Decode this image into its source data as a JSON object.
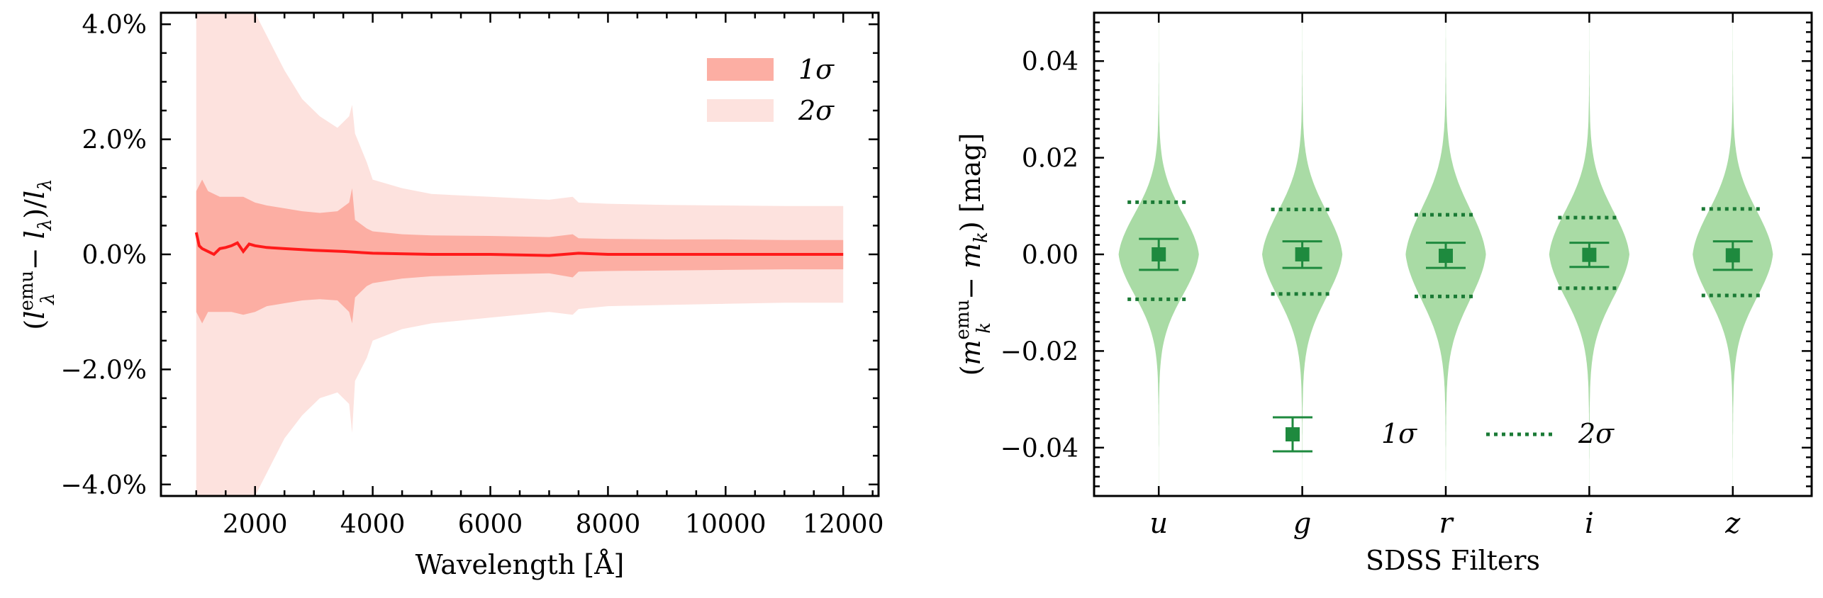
{
  "chart_data": [
    {
      "type": "area",
      "xlabel": "Wavelength [Å]",
      "ylabel": "(l_λ^emu − l_λ)/l_λ",
      "ylabel_parts": {
        "open": "(",
        "l": "l",
        "sup": "emu",
        "sub": "λ",
        "mid": " − ",
        "l2": "l",
        "sub2": "λ",
        "close": ")/",
        "l3": "l",
        "sub3": "λ"
      },
      "xlim": [
        400,
        12600
      ],
      "ylim": [
        -4.2,
        4.2
      ],
      "xticks": [
        2000,
        4000,
        6000,
        8000,
        10000,
        12000
      ],
      "xtick_labels": [
        "2000",
        "4000",
        "6000",
        "8000",
        "10000",
        "12000"
      ],
      "yticks": [
        -4,
        -2,
        0,
        2,
        4
      ],
      "ytick_labels": [
        "−4.0%",
        "−2.0%",
        "0.0%",
        "2.0%",
        "4.0%"
      ],
      "legend": {
        "position": "upper right",
        "entries": [
          {
            "label": "1σ",
            "color": "#fcaea3"
          },
          {
            "label": "2σ",
            "color": "#fde2de"
          }
        ]
      },
      "colors": {
        "one_sigma": "#fcaea3",
        "two_sigma": "#fde2de",
        "median": "#ff1a1a"
      },
      "series": [
        {
          "name": "2σ",
          "x": [
            1000,
            1100,
            1200,
            1400,
            1600,
            1800,
            2000,
            2200,
            2500,
            2800,
            3100,
            3400,
            3600,
            3650,
            3700,
            3900,
            4000,
            4500,
            5000,
            6000,
            7000,
            7400,
            7500,
            8000,
            9000,
            10000,
            11000,
            12000
          ],
          "upper": [
            4.2,
            4.2,
            4.2,
            4.2,
            4.2,
            4.2,
            4.2,
            3.8,
            3.2,
            2.7,
            2.4,
            2.2,
            2.4,
            2.6,
            2.1,
            1.6,
            1.3,
            1.15,
            1.05,
            1.0,
            0.95,
            1.0,
            0.9,
            0.88,
            0.86,
            0.85,
            0.84,
            0.84
          ],
          "lower": [
            -4.2,
            -4.2,
            -4.2,
            -4.2,
            -4.2,
            -4.2,
            -4.2,
            -3.8,
            -3.2,
            -2.8,
            -2.5,
            -2.4,
            -2.6,
            -3.1,
            -2.2,
            -1.8,
            -1.5,
            -1.3,
            -1.2,
            -1.1,
            -1.0,
            -1.05,
            -0.95,
            -0.9,
            -0.88,
            -0.86,
            -0.84,
            -0.84
          ]
        },
        {
          "name": "1σ",
          "x": [
            1000,
            1100,
            1200,
            1400,
            1600,
            1800,
            2000,
            2200,
            2500,
            2800,
            3100,
            3400,
            3600,
            3650,
            3700,
            3900,
            4000,
            4500,
            5000,
            6000,
            7000,
            7400,
            7500,
            8000,
            9000,
            10000,
            11000,
            12000
          ],
          "upper": [
            1.1,
            1.3,
            1.1,
            1.0,
            1.0,
            1.0,
            0.9,
            0.85,
            0.8,
            0.75,
            0.72,
            0.75,
            0.9,
            1.15,
            0.6,
            0.45,
            0.4,
            0.35,
            0.33,
            0.32,
            0.3,
            0.35,
            0.28,
            0.27,
            0.26,
            0.26,
            0.25,
            0.25
          ],
          "lower": [
            -1.0,
            -1.2,
            -1.0,
            -1.0,
            -1.0,
            -1.05,
            -1.0,
            -0.9,
            -0.85,
            -0.8,
            -0.78,
            -0.8,
            -1.0,
            -1.2,
            -0.75,
            -0.55,
            -0.5,
            -0.42,
            -0.38,
            -0.35,
            -0.33,
            -0.4,
            -0.3,
            -0.29,
            -0.28,
            -0.27,
            -0.26,
            -0.26
          ]
        },
        {
          "name": "median",
          "x": [
            1000,
            1050,
            1100,
            1200,
            1300,
            1400,
            1500,
            1600,
            1700,
            1800,
            1900,
            2000,
            2200,
            2500,
            3000,
            3500,
            4000,
            5000,
            6000,
            7000,
            7500,
            8000,
            9000,
            10000,
            11000,
            12000
          ],
          "y": [
            0.38,
            0.15,
            0.1,
            0.05,
            0.0,
            0.1,
            0.12,
            0.15,
            0.2,
            0.05,
            0.18,
            0.15,
            0.12,
            0.1,
            0.07,
            0.05,
            0.02,
            0.0,
            0.0,
            -0.02,
            0.02,
            0.0,
            0.0,
            0.0,
            0.0,
            0.0
          ]
        }
      ]
    },
    {
      "type": "violin",
      "xlabel": "SDSS Filters",
      "ylabel": "(m_k^emu − m_k) [mag]",
      "ylabel_parts": {
        "open": "(",
        "m": "m",
        "sup": "emu",
        "sub": "k",
        "mid": " − ",
        "m2": "m",
        "sub2": "k",
        "close": ") [mag]"
      },
      "categories": [
        "u",
        "g",
        "r",
        "i",
        "z"
      ],
      "ylim": [
        -0.05,
        0.05
      ],
      "yticks": [
        -0.04,
        -0.02,
        0.0,
        0.02,
        0.04
      ],
      "ytick_labels": [
        "−0.04",
        "−0.02",
        "0.00",
        "0.02",
        "0.04"
      ],
      "legend": {
        "position": "lower center",
        "entries": [
          {
            "label": "1σ",
            "marker": "square-errorbar"
          },
          {
            "label": "2σ",
            "marker": "dotted-line"
          }
        ]
      },
      "colors": {
        "violin": "#a9dba5",
        "marker": "#1e8a3e",
        "dotted": "#1a7a35"
      },
      "violin_extent": [
        -0.05,
        0.05
      ],
      "medians": [
        0.0,
        0.0,
        -0.0003,
        -0.0001,
        -0.0002
      ],
      "one_sigma_upper": [
        0.0032,
        0.0027,
        0.0024,
        0.0024,
        0.0027
      ],
      "one_sigma_lower": [
        -0.0032,
        -0.0028,
        -0.0028,
        -0.0026,
        -0.0032
      ],
      "two_sigma_upper": [
        0.0108,
        0.0093,
        0.0082,
        0.0076,
        0.0094
      ],
      "two_sigma_lower": [
        -0.0093,
        -0.0082,
        -0.0087,
        -0.007,
        -0.0085
      ],
      "violin_halfwidth_at_center": [
        0.016,
        0.017,
        0.018,
        0.017,
        0.017
      ]
    }
  ]
}
